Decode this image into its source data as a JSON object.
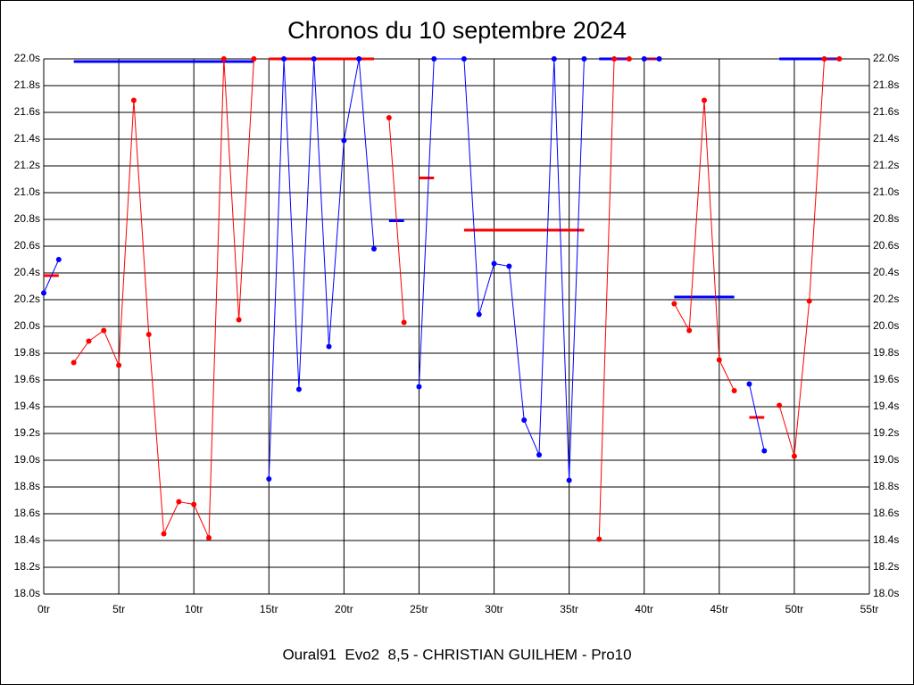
{
  "chart_data": {
    "type": "line",
    "title": "Chronos du 10 septembre 2024",
    "footer": "Oural91  Evo2  8,5 - CHRISTIAN GUILHEM - Pro10",
    "xlim": [
      0,
      55
    ],
    "xticks": [
      {
        "value": 0,
        "label": "0tr"
      },
      {
        "value": 5,
        "label": "5tr"
      },
      {
        "value": 10,
        "label": "10tr"
      },
      {
        "value": 15,
        "label": "15tr"
      },
      {
        "value": 20,
        "label": "20tr"
      },
      {
        "value": 25,
        "label": "25tr"
      },
      {
        "value": 30,
        "label": "30tr"
      },
      {
        "value": 35,
        "label": "35tr"
      },
      {
        "value": 40,
        "label": "40tr"
      },
      {
        "value": 45,
        "label": "45tr"
      },
      {
        "value": 50,
        "label": "50tr"
      },
      {
        "value": 55,
        "label": "55tr"
      }
    ],
    "ylim": [
      18.0,
      22.0
    ],
    "yticks": [
      {
        "value": 18.0,
        "label": "18.0s"
      },
      {
        "value": 18.2,
        "label": "18.2s"
      },
      {
        "value": 18.4,
        "label": "18.4s"
      },
      {
        "value": 18.6,
        "label": "18.6s"
      },
      {
        "value": 18.8,
        "label": "18.8s"
      },
      {
        "value": 19.0,
        "label": "19.0s"
      },
      {
        "value": 19.2,
        "label": "19.2s"
      },
      {
        "value": 19.4,
        "label": "19.4s"
      },
      {
        "value": 19.6,
        "label": "19.6s"
      },
      {
        "value": 19.8,
        "label": "19.8s"
      },
      {
        "value": 20.0,
        "label": "20.0s"
      },
      {
        "value": 20.2,
        "label": "20.2s"
      },
      {
        "value": 20.4,
        "label": "20.4s"
      },
      {
        "value": 20.6,
        "label": "20.6s"
      },
      {
        "value": 20.8,
        "label": "20.8s"
      },
      {
        "value": 21.0,
        "label": "21.0s"
      },
      {
        "value": 21.2,
        "label": "21.2s"
      },
      {
        "value": 21.4,
        "label": "21.4s"
      },
      {
        "value": 21.6,
        "label": "21.6s"
      },
      {
        "value": 21.8,
        "label": "21.8s"
      },
      {
        "value": 22.0,
        "label": "22.0s"
      }
    ],
    "grid": true,
    "series": [
      {
        "color": "#0000ff",
        "x": [
          0,
          1
        ],
        "values": [
          20.25,
          20.5
        ]
      },
      {
        "color": "#ff0000",
        "x": [
          2,
          3,
          4,
          5,
          6,
          7,
          8,
          9,
          10,
          11,
          12,
          13,
          14
        ],
        "values": [
          19.73,
          19.89,
          19.97,
          19.71,
          21.69,
          19.94,
          18.45,
          18.69,
          18.67,
          18.42,
          22.0,
          20.05,
          22.0
        ]
      },
      {
        "color": "#0000ff",
        "x": [
          15,
          16,
          17,
          18,
          19,
          20,
          21,
          22
        ],
        "values": [
          18.86,
          22.0,
          19.53,
          22.0,
          19.85,
          21.39,
          22.0,
          20.58
        ]
      },
      {
        "color": "#ff0000",
        "x": [
          23,
          24
        ],
        "values": [
          21.56,
          20.03
        ]
      },
      {
        "color": "#0000ff",
        "x": [
          25,
          26,
          28,
          29,
          30,
          31,
          32,
          33,
          34,
          35,
          36
        ],
        "values": [
          19.55,
          22.0,
          22.0,
          20.09,
          20.47,
          20.45,
          19.3,
          19.04,
          22.0,
          18.85,
          22.0
        ]
      },
      {
        "color": "#ff0000",
        "x": [
          37,
          38,
          39
        ],
        "values": [
          18.41,
          22.0,
          22.0
        ]
      },
      {
        "color": "#0000ff",
        "x": [
          40,
          41
        ],
        "values": [
          22.0,
          22.0
        ]
      },
      {
        "color": "#ff0000",
        "x": [
          42,
          43,
          44,
          45,
          46
        ],
        "values": [
          20.17,
          19.97,
          21.69,
          19.75,
          19.52
        ]
      },
      {
        "color": "#0000ff",
        "x": [
          47,
          48
        ],
        "values": [
          19.57,
          19.07
        ]
      },
      {
        "color": "#ff0000",
        "x": [
          49,
          50,
          51,
          52,
          53
        ],
        "values": [
          19.41,
          19.03,
          20.19,
          22.0,
          22.0
        ]
      }
    ],
    "means": [
      {
        "color": "#ff0000",
        "x": [
          0,
          1
        ],
        "value": 20.38
      },
      {
        "color": "#0000ff",
        "x": [
          2,
          14
        ],
        "value": 21.98
      },
      {
        "color": "#ff0000",
        "x": [
          15,
          22
        ],
        "value": 22.0
      },
      {
        "color": "#0000ff",
        "x": [
          23,
          24
        ],
        "value": 20.79
      },
      {
        "color": "#ff0000",
        "x": [
          25,
          26
        ],
        "value": 21.11
      },
      {
        "color": "#ff0000",
        "x": [
          28,
          36
        ],
        "value": 20.72
      },
      {
        "color": "#0000ff",
        "x": [
          37,
          39
        ],
        "value": 22.0
      },
      {
        "color": "#ff0000",
        "x": [
          40,
          41
        ],
        "value": 22.0
      },
      {
        "color": "#0000ff",
        "x": [
          42,
          46
        ],
        "value": 20.22
      },
      {
        "color": "#ff0000",
        "x": [
          47,
          48
        ],
        "value": 19.32
      },
      {
        "color": "#0000ff",
        "x": [
          49,
          53
        ],
        "value": 22.0
      }
    ]
  }
}
